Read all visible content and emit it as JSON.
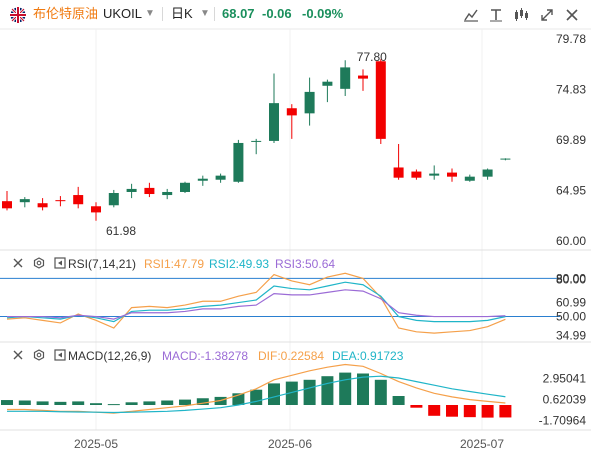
{
  "header": {
    "name": "布伦特原油",
    "symbol": "UKOIL",
    "timeframe": "日K",
    "price": "68.07",
    "change": "-0.06",
    "change_pct": "-0.09%",
    "toolbar_icons": [
      "chart-style-icon",
      "text-tool-icon",
      "indicators-icon",
      "fullscreen-icon",
      "close-icon"
    ]
  },
  "price_axis": [
    "79.78",
    "74.83",
    "69.89",
    "64.95",
    "60.00"
  ],
  "annotations": {
    "high": "77.80",
    "low": "61.98"
  },
  "rsi": {
    "title": "RSI(7,14,21)",
    "rsi1": "RSI1:47.79",
    "rsi2": "RSI2:49.93",
    "rsi3": "RSI3:50.64",
    "axis": [
      "80.00",
      "80.00",
      "60.99",
      "50.00",
      "34.99"
    ]
  },
  "macd": {
    "title": "MACD(12,26,9)",
    "macd": "MACD:-1.38278",
    "dif": "DIF:0.22584",
    "dea": "DEA:0.91723",
    "axis": [
      "2.95041",
      "0.62039",
      "-1.70964"
    ]
  },
  "date_axis": [
    "2025-05",
    "2025-06",
    "2025-07"
  ],
  "colors": {
    "up": "#1e7a5a",
    "down": "#f20000",
    "name": "#f07a10",
    "negative": "#1a8f5c",
    "rsi1": "#f5a04a",
    "rsi2": "#20b5c8",
    "rsi3": "#9b6bd6",
    "dif": "#f5a04a",
    "dea": "#20b5c8"
  },
  "chart_data": [
    {
      "type": "candlestick",
      "title": "",
      "ylim": [
        60.0,
        79.78
      ],
      "x_ticks": [
        "2025-05",
        "2025-06",
        "2025-07"
      ],
      "candles": [
        {
          "o": 63.9,
          "h": 64.9,
          "l": 63.0,
          "c": 63.2
        },
        {
          "o": 63.8,
          "h": 64.3,
          "l": 63.3,
          "c": 64.1
        },
        {
          "o": 63.7,
          "h": 64.2,
          "l": 63.0,
          "c": 63.3
        },
        {
          "o": 64.0,
          "h": 64.4,
          "l": 63.4,
          "c": 63.9
        },
        {
          "o": 64.5,
          "h": 65.3,
          "l": 63.2,
          "c": 63.6
        },
        {
          "o": 63.4,
          "h": 63.8,
          "l": 61.98,
          "c": 62.8
        },
        {
          "o": 63.5,
          "h": 65.0,
          "l": 63.3,
          "c": 64.7
        },
        {
          "o": 64.8,
          "h": 65.6,
          "l": 64.2,
          "c": 65.1
        },
        {
          "o": 65.2,
          "h": 65.7,
          "l": 64.3,
          "c": 64.6
        },
        {
          "o": 64.5,
          "h": 65.1,
          "l": 64.1,
          "c": 64.8
        },
        {
          "o": 64.8,
          "h": 65.8,
          "l": 64.7,
          "c": 65.7
        },
        {
          "o": 65.9,
          "h": 66.4,
          "l": 65.4,
          "c": 66.1
        },
        {
          "o": 66.0,
          "h": 66.6,
          "l": 65.7,
          "c": 66.4
        },
        {
          "o": 65.8,
          "h": 69.9,
          "l": 65.7,
          "c": 69.6
        },
        {
          "o": 69.8,
          "h": 70.0,
          "l": 68.5,
          "c": 69.8
        },
        {
          "o": 69.8,
          "h": 76.4,
          "l": 69.6,
          "c": 73.5
        },
        {
          "o": 73.0,
          "h": 73.4,
          "l": 70.0,
          "c": 72.3
        },
        {
          "o": 72.5,
          "h": 76.0,
          "l": 71.3,
          "c": 74.6
        },
        {
          "o": 75.2,
          "h": 75.8,
          "l": 73.6,
          "c": 75.6
        },
        {
          "o": 74.9,
          "h": 77.7,
          "l": 74.2,
          "c": 77.0
        },
        {
          "o": 76.2,
          "h": 76.8,
          "l": 74.7,
          "c": 75.9
        },
        {
          "o": 77.6,
          "h": 77.8,
          "l": 69.5,
          "c": 70.0
        },
        {
          "o": 67.2,
          "h": 69.5,
          "l": 66.0,
          "c": 66.2
        },
        {
          "o": 66.8,
          "h": 67.0,
          "l": 66.0,
          "c": 66.2
        },
        {
          "o": 66.4,
          "h": 67.4,
          "l": 66.0,
          "c": 66.6
        },
        {
          "o": 66.7,
          "h": 67.1,
          "l": 65.8,
          "c": 66.3
        },
        {
          "o": 65.9,
          "h": 66.5,
          "l": 65.8,
          "c": 66.3
        },
        {
          "o": 66.3,
          "h": 67.1,
          "l": 66.0,
          "c": 67.0
        },
        {
          "o": 68.07,
          "h": 68.1,
          "l": 67.9,
          "c": 68.07
        }
      ]
    },
    {
      "type": "line",
      "title": "RSI(7,14,21)",
      "ylim": [
        30,
        85
      ],
      "series": [
        {
          "name": "RSI1",
          "values": [
            48,
            49,
            47,
            45,
            52,
            47,
            41,
            57,
            58,
            57,
            59,
            62,
            62,
            66,
            69,
            83,
            78,
            75,
            81,
            84,
            80,
            65,
            41,
            38,
            37,
            38,
            39,
            42,
            47.79
          ]
        },
        {
          "name": "RSI2",
          "values": [
            49,
            50,
            49,
            48,
            51,
            49,
            46,
            54,
            55,
            55,
            56,
            58,
            59,
            61,
            63,
            74,
            72,
            71,
            74,
            77,
            75,
            66,
            50,
            47,
            46,
            46,
            46,
            47,
            49.93
          ]
        },
        {
          "name": "RSI3",
          "values": [
            50,
            50,
            50,
            49,
            51,
            50,
            48,
            53,
            53,
            53,
            54,
            56,
            56,
            58,
            59,
            68,
            67,
            67,
            69,
            71,
            70,
            64,
            53,
            51,
            50,
            50,
            50,
            50,
            50.64
          ]
        }
      ]
    },
    {
      "type": "bar",
      "title": "MACD(12,26,9)",
      "ylim": [
        -3.0,
        5.0
      ],
      "series": [
        {
          "name": "MACD",
          "values": [
            0.55,
            0.5,
            0.4,
            0.35,
            0.4,
            0.2,
            0.1,
            0.3,
            0.4,
            0.5,
            0.6,
            0.75,
            0.9,
            1.3,
            1.7,
            2.4,
            2.6,
            2.8,
            3.2,
            3.6,
            3.5,
            2.8,
            1.0,
            -0.3,
            -1.2,
            -1.3,
            -1.35,
            -1.4,
            -1.38278
          ]
        },
        {
          "name": "DIF",
          "values": [
            -0.5,
            -0.5,
            -0.6,
            -0.7,
            -0.7,
            -0.8,
            -0.9,
            -0.7,
            -0.5,
            -0.3,
            -0.1,
            0.2,
            0.5,
            1.1,
            1.8,
            2.8,
            3.3,
            3.8,
            4.2,
            4.5,
            4.3,
            3.5,
            2.6,
            1.9,
            1.3,
            0.9,
            0.6,
            0.4,
            0.22584
          ]
        },
        {
          "name": "DEA",
          "values": [
            -0.7,
            -0.7,
            -0.7,
            -0.75,
            -0.78,
            -0.8,
            -0.83,
            -0.8,
            -0.75,
            -0.7,
            -0.6,
            -0.45,
            -0.3,
            0.0,
            0.4,
            0.9,
            1.4,
            1.9,
            2.4,
            2.8,
            3.1,
            3.2,
            3.0,
            2.6,
            2.2,
            1.8,
            1.5,
            1.2,
            0.91723
          ]
        }
      ]
    }
  ]
}
